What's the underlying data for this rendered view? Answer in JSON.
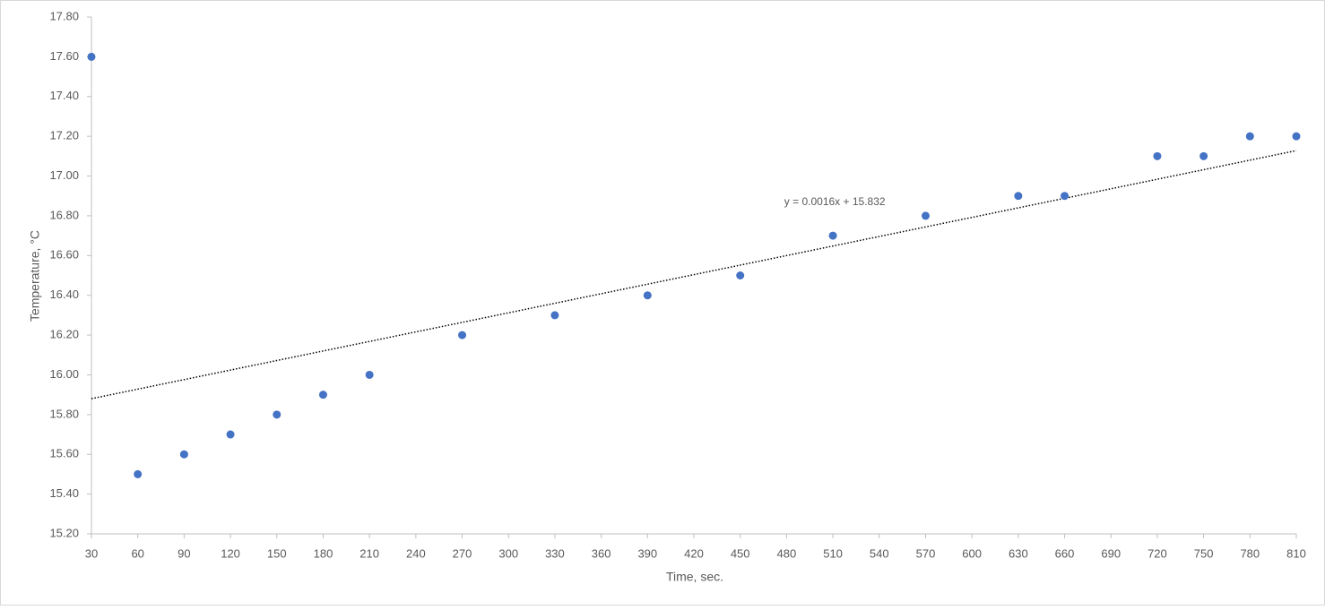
{
  "chart_data": {
    "type": "scatter",
    "x_label": "Time, sec.",
    "y_label": "Temperature, °C",
    "color": "#4472c4",
    "x": [
      30,
      60,
      90,
      120,
      150,
      180,
      210,
      270,
      330,
      390,
      450,
      510,
      570,
      630,
      660,
      720,
      750,
      780,
      810
    ],
    "values": [
      17.6,
      15.5,
      15.6,
      15.7,
      15.8,
      15.9,
      16.0,
      16.2,
      16.3,
      16.4,
      16.5,
      16.7,
      16.8,
      16.9,
      16.9,
      17.1,
      17.1,
      17.2,
      17.2
    ],
    "xlim": [
      30,
      810
    ],
    "xticks": [
      30,
      60,
      90,
      120,
      150,
      180,
      210,
      240,
      270,
      300,
      330,
      360,
      390,
      420,
      450,
      480,
      510,
      540,
      570,
      600,
      630,
      660,
      690,
      720,
      750,
      780,
      810
    ],
    "ylim": [
      15.2,
      17.8
    ],
    "yticks": [
      {
        "value": 15.2,
        "label": "15.20"
      },
      {
        "value": 15.4,
        "label": "15.40"
      },
      {
        "value": 15.6,
        "label": "15.60"
      },
      {
        "value": 15.8,
        "label": "15.80"
      },
      {
        "value": 16.0,
        "label": "16.00"
      },
      {
        "value": 16.2,
        "label": "16.20"
      },
      {
        "value": 16.4,
        "label": "16.40"
      },
      {
        "value": 16.6,
        "label": "16.60"
      },
      {
        "value": 16.8,
        "label": "16.80"
      },
      {
        "value": 17.0,
        "label": "17.00"
      },
      {
        "value": 17.2,
        "label": "17.20"
      },
      {
        "value": 17.4,
        "label": "17.40"
      },
      {
        "value": 17.6,
        "label": "17.60"
      },
      {
        "value": 17.8,
        "label": "17.80"
      }
    ],
    "grid": false,
    "trendline": {
      "slope": 0.0016,
      "intercept": 15.832,
      "label": "y = 0.0016x + 15.832",
      "color": "#000000"
    }
  }
}
